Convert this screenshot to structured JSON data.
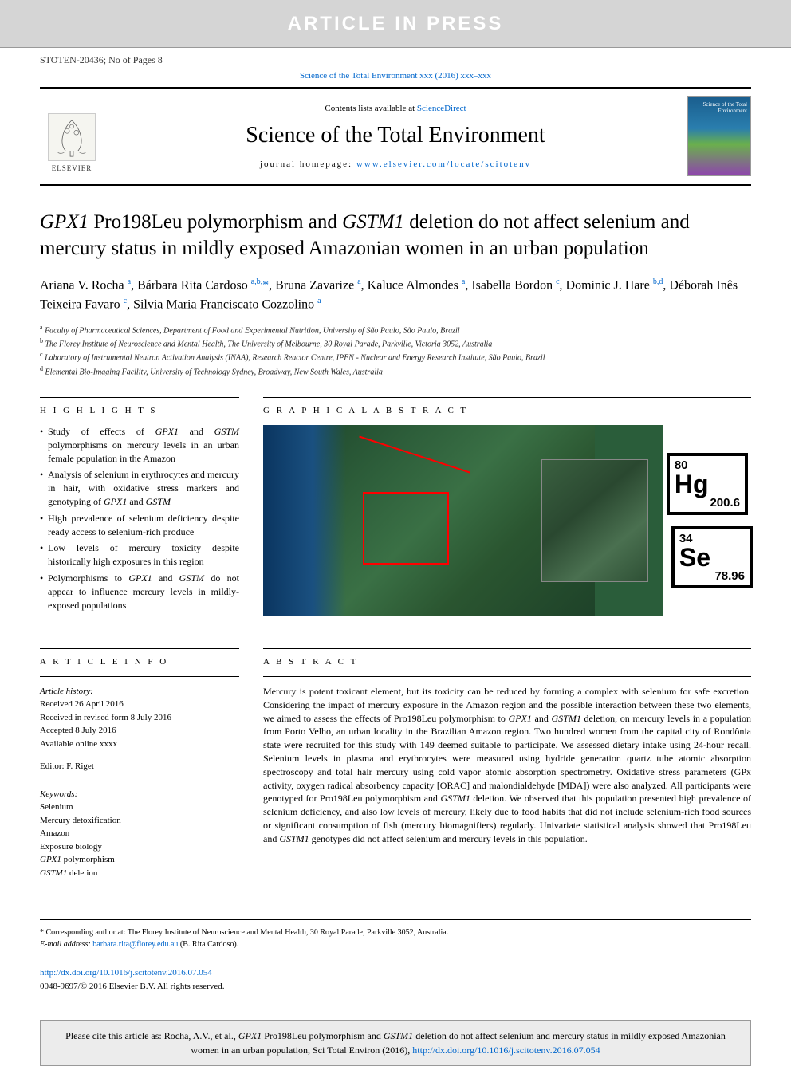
{
  "banner": {
    "text": "ARTICLE IN PRESS"
  },
  "ref_line": "STOTEN-20436; No of Pages 8",
  "journal_link_top": "Science of the Total Environment xxx (2016) xxx–xxx",
  "header": {
    "contents_prefix": "Contents lists available at ",
    "contents_link": "ScienceDirect",
    "journal_name": "Science of the Total Environment",
    "homepage_prefix": "journal homepage: ",
    "homepage_url": "www.elsevier.com/locate/scitotenv",
    "elsevier_label": "ELSEVIER",
    "cover_text": "Science of the Total Environment"
  },
  "title_parts": [
    {
      "t": "GPX1",
      "i": true
    },
    {
      "t": " Pro198Leu polymorphism and ",
      "i": false
    },
    {
      "t": "GSTM1",
      "i": true
    },
    {
      "t": " deletion do not affect selenium and mercury status in mildly exposed Amazonian women in an urban population",
      "i": false
    }
  ],
  "authors_html": "Ariana V. Rocha <sup>a</sup>, Bárbara Rita Cardoso <sup>a,b,</sup><span class='corr'>*</span>, Bruna Zavarize <sup>a</sup>, Kaluce Almondes <sup>a</sup>, Isabella Bordon <sup>c</sup>, Dominic J. Hare <sup>b,d</sup>, Déborah Inês Teixeira Favaro <sup>c</sup>, Silvia Maria Franciscato Cozzolino <sup>a</sup>",
  "affiliations": [
    {
      "sup": "a",
      "text": "Faculty of Pharmaceutical Sciences, Department of Food and Experimental Nutrition, University of São Paulo, São Paulo, Brazil"
    },
    {
      "sup": "b",
      "text": "The Florey Institute of Neuroscience and Mental Health, The University of Melbourne, 30 Royal Parade, Parkville, Victoria 3052, Australia"
    },
    {
      "sup": "c",
      "text": "Laboratory of Instrumental Neutron Activation Analysis (INAA), Research Reactor Centre, IPEN - Nuclear and Energy Research Institute, São Paulo, Brazil"
    },
    {
      "sup": "d",
      "text": "Elemental Bio-Imaging Facility, University of Technology Sydney, Broadway, New South Wales, Australia"
    }
  ],
  "highlights_label": "H I G H L I G H T S",
  "highlights": [
    "Study of effects of <span class='italic'>GPX1</span> and <span class='italic'>GSTM</span> polymorphisms on mercury levels in an urban female population in the Amazon",
    "Analysis of selenium in erythrocytes and mercury in hair, with oxidative stress markers and genotyping of <span class='italic'>GPX1</span> and <span class='italic'>GSTM</span>",
    "High prevalence of selenium deficiency despite ready access to selenium-rich produce",
    "Low levels of mercury toxicity despite historically high exposures in this region",
    "Polymorphisms to <span class='italic'>GPX1</span> and <span class='italic'>GSTM</span> do not appear to influence mercury levels in mildly-exposed populations"
  ],
  "graphical_label": "G R A P H I C A L  A B S T R A C T",
  "elements": {
    "hg": {
      "num": "80",
      "sym": "Hg",
      "mass": "200.6"
    },
    "se": {
      "num": "34",
      "sym": "Se",
      "mass": "78.96"
    }
  },
  "article_info_label": "A R T I C L E  I N F O",
  "article_history_label": "Article history:",
  "history": [
    "Received 26 April 2016",
    "Received in revised form 8 July 2016",
    "Accepted 8 July 2016",
    "Available online xxxx"
  ],
  "editor_line": "Editor: F. Riget",
  "keywords_label": "Keywords:",
  "keywords": [
    {
      "t": "Selenium",
      "i": false
    },
    {
      "t": "Mercury detoxification",
      "i": false
    },
    {
      "t": "Amazon",
      "i": false
    },
    {
      "t": "Exposure biology",
      "i": false
    },
    {
      "t": "GPX1 polymorphism",
      "i": true,
      "italic_part": "GPX1"
    },
    {
      "t": "GSTM1 deletion",
      "i": true,
      "italic_part": "GSTM1"
    }
  ],
  "abstract_label": "A B S T R A C T",
  "abstract_html": "Mercury is potent toxicant element, but its toxicity can be reduced by forming a complex with selenium for safe excretion. Considering the impact of mercury exposure in the Amazon region and the possible interaction between these two elements, we aimed to assess the effects of Pro198Leu polymorphism to <span class='italic'>GPX1</span> and <span class='italic'>GSTM1</span> deletion, on mercury levels in a population from Porto Velho, an urban locality in the Brazilian Amazon region. Two hundred women from the capital city of Rondônia state were recruited for this study with 149 deemed suitable to participate. We assessed dietary intake using 24-hour recall. Selenium levels in plasma and erythrocytes were measured using hydride generation quartz tube atomic absorption spectroscopy and total hair mercury using cold vapor atomic absorption spectrometry. Oxidative stress parameters (GPx activity, oxygen radical absorbency capacity [ORAC] and malondialdehyde [MDA]) were also analyzed. All participants were genotyped for Pro198Leu polymorphism and <span class='italic'>GSTM1</span> deletion. We observed that this population presented high prevalence of selenium deficiency, and also low levels of mercury, likely due to food habits that did not include selenium-rich food sources or significant consumption of fish (mercury biomagnifiers) regularly. Univariate statistical analysis showed that Pro198Leu and <span class='italic'>GSTM1</span> genotypes did not affect selenium and mercury levels in this population.",
  "corr_note": "Corresponding author at: The Florey Institute of Neuroscience and Mental Health, 30 Royal Parade, Parkville 3052, Australia.",
  "email_label": "E-mail address:",
  "email": "barbara.rita@florey.edu.au",
  "email_name": "(B. Rita Cardoso).",
  "doi_url": "http://dx.doi.org/10.1016/j.scitotenv.2016.07.054",
  "copyright": "0048-9697/© 2016 Elsevier B.V. All rights reserved.",
  "cite_prefix": "Please cite this article as: Rocha, A.V., et al., ",
  "cite_title_html": "<span class='italic'>GPX1</span> Pro198Leu polymorphism and <span class='italic'>GSTM1</span> deletion do not affect selenium and mercury status in mildly exposed Amazonian women in an urban population, Sci Total Environ (2016), ",
  "cite_doi": "http://dx.doi.org/10.1016/j.scitotenv.2016.07.054",
  "colors": {
    "banner_bg": "#d5d5d5",
    "banner_text": "#ffffff",
    "link": "#0066cc",
    "text": "#000000",
    "cite_bg": "#ececec"
  }
}
